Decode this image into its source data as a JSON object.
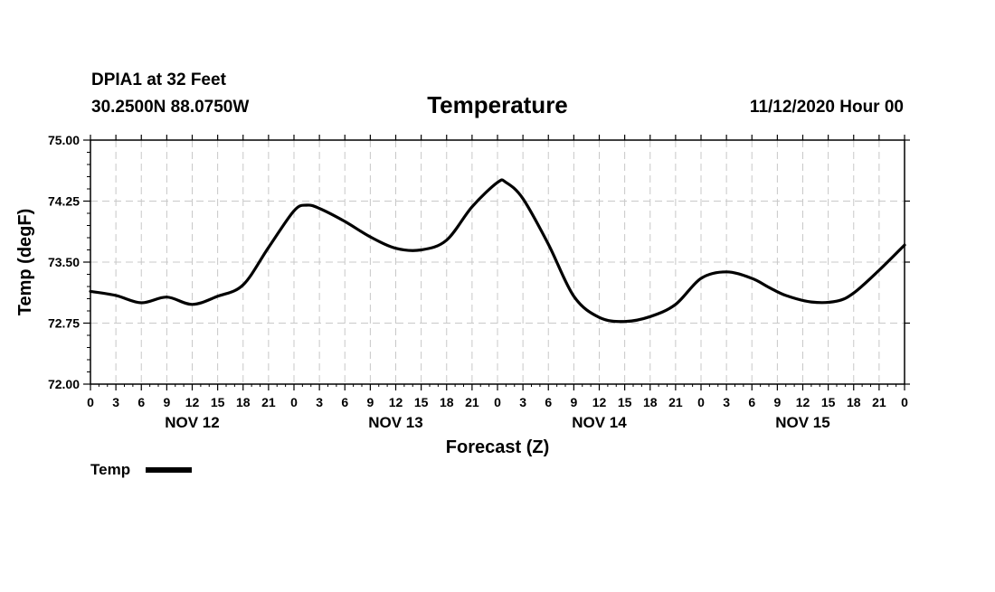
{
  "header": {
    "station": "DPIA1 at 32 Feet",
    "location": "30.2500N 88.0750W",
    "title": "Temperature",
    "run_time": "11/12/2020 Hour 00"
  },
  "chart_data": {
    "type": "line",
    "title": "Temperature",
    "xlabel": "Forecast (Z)",
    "ylabel": "Temp (degF)",
    "ylim": [
      72.0,
      75.0
    ],
    "yticks": [
      "72.00",
      "72.75",
      "73.50",
      "74.25",
      "75.00"
    ],
    "xlim_hours": [
      0,
      96
    ],
    "xtick_labels": [
      "0",
      "3",
      "6",
      "9",
      "12",
      "15",
      "18",
      "21",
      "0",
      "3",
      "6",
      "9",
      "12",
      "15",
      "18",
      "21",
      "0",
      "3",
      "6",
      "9",
      "12",
      "15",
      "18",
      "21",
      "0",
      "3",
      "6",
      "9",
      "12",
      "15",
      "18",
      "21",
      "0"
    ],
    "day_labels": [
      "NOV 12",
      "NOV 13",
      "NOV 14",
      "NOV 15"
    ],
    "grid": true,
    "legend_position": "bottom-left",
    "series": [
      {
        "name": "Temp",
        "color": "#000000",
        "x": [
          0,
          3,
          6,
          9,
          12,
          15,
          18,
          21,
          24,
          25.5,
          27,
          30,
          33,
          36,
          39,
          42,
          45,
          48,
          49,
          51,
          54,
          57,
          60,
          63,
          66,
          69,
          72,
          75,
          78,
          80,
          82,
          85,
          88,
          90,
          93,
          96
        ],
        "values": [
          73.14,
          73.09,
          73.0,
          73.07,
          72.98,
          73.08,
          73.22,
          73.68,
          74.13,
          74.2,
          74.16,
          74.0,
          73.81,
          73.67,
          73.65,
          73.77,
          74.18,
          74.48,
          74.48,
          74.28,
          73.72,
          73.08,
          72.82,
          72.77,
          72.83,
          72.98,
          73.3,
          73.38,
          73.3,
          73.19,
          73.09,
          73.01,
          73.02,
          73.12,
          73.4,
          73.71
        ]
      }
    ]
  }
}
